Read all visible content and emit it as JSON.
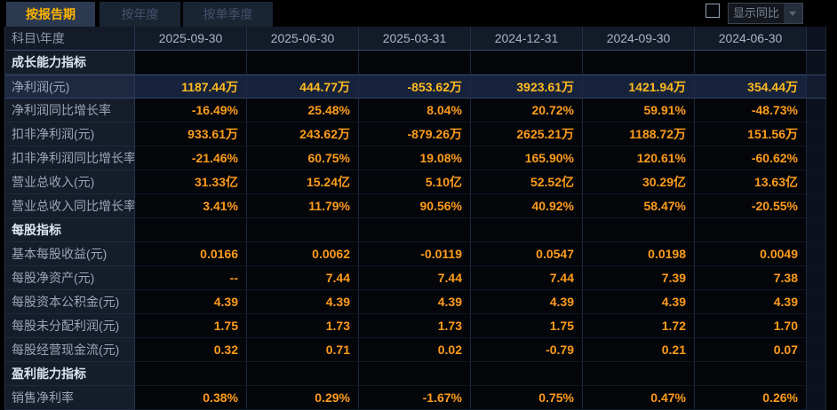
{
  "tabs": [
    {
      "label": "按报告期",
      "active": true
    },
    {
      "label": "按年度",
      "active": false
    },
    {
      "label": "按单季度",
      "active": false
    }
  ],
  "controls": {
    "compare_label": "显示同比",
    "checkbox_checked": false
  },
  "colors": {
    "value_orange": "#fe9c1b",
    "selected_value_orange": "#ffbb21",
    "active_tab_text": "#ffb400",
    "active_tab_bg": "#2c3a51",
    "selected_row_bg": "#17233c",
    "label_column_bg": "#151c2a"
  },
  "table": {
    "corner_header": "科目\\年度",
    "more_columns_icon": "»",
    "columns": [
      "2025-09-30",
      "2025-06-30",
      "2025-03-31",
      "2024-12-31",
      "2024-09-30",
      "2024-06-30"
    ],
    "rows": [
      {
        "type": "section",
        "label": "成长能力指标",
        "values": [
          "",
          "",
          "",
          "",
          "",
          ""
        ]
      },
      {
        "type": "data",
        "selected": true,
        "label": "净利润(元)",
        "values": [
          "1187.44万",
          "444.77万",
          "-853.62万",
          "3923.61万",
          "1421.94万",
          "354.44万"
        ]
      },
      {
        "type": "data",
        "label": "净利润同比增长率",
        "values": [
          "-16.49%",
          "25.48%",
          "8.04%",
          "20.72%",
          "59.91%",
          "-48.73%"
        ]
      },
      {
        "type": "data",
        "label": "扣非净利润(元)",
        "values": [
          "933.61万",
          "243.62万",
          "-879.26万",
          "2625.21万",
          "1188.72万",
          "151.56万"
        ]
      },
      {
        "type": "data",
        "label": "扣非净利润同比增长率",
        "values": [
          "-21.46%",
          "60.75%",
          "19.08%",
          "165.90%",
          "120.61%",
          "-60.62%"
        ]
      },
      {
        "type": "data",
        "label": "营业总收入(元)",
        "values": [
          "31.33亿",
          "15.24亿",
          "5.10亿",
          "52.52亿",
          "30.29亿",
          "13.63亿"
        ]
      },
      {
        "type": "data",
        "label": "营业总收入同比增长率",
        "values": [
          "3.41%",
          "11.79%",
          "90.56%",
          "40.92%",
          "58.47%",
          "-20.55%"
        ]
      },
      {
        "type": "section",
        "label": "每股指标",
        "values": [
          "",
          "",
          "",
          "",
          "",
          ""
        ]
      },
      {
        "type": "data",
        "label": "基本每股收益(元)",
        "values": [
          "0.0166",
          "0.0062",
          "-0.0119",
          "0.0547",
          "0.0198",
          "0.0049"
        ]
      },
      {
        "type": "data",
        "label": "每股净资产(元)",
        "values": [
          "--",
          "7.44",
          "7.44",
          "7.44",
          "7.39",
          "7.38"
        ]
      },
      {
        "type": "data",
        "label": "每股资本公积金(元)",
        "values": [
          "4.39",
          "4.39",
          "4.39",
          "4.39",
          "4.39",
          "4.39"
        ]
      },
      {
        "type": "data",
        "label": "每股未分配利润(元)",
        "values": [
          "1.75",
          "1.73",
          "1.73",
          "1.75",
          "1.72",
          "1.70"
        ]
      },
      {
        "type": "data",
        "label": "每股经营现金流(元)",
        "values": [
          "0.32",
          "0.71",
          "0.02",
          "-0.79",
          "0.21",
          "0.07"
        ]
      },
      {
        "type": "section",
        "label": "盈利能力指标",
        "values": [
          "",
          "",
          "",
          "",
          "",
          ""
        ]
      },
      {
        "type": "data",
        "label": "销售净利率",
        "values": [
          "0.38%",
          "0.29%",
          "-1.67%",
          "0.75%",
          "0.47%",
          "0.26%"
        ]
      }
    ]
  }
}
